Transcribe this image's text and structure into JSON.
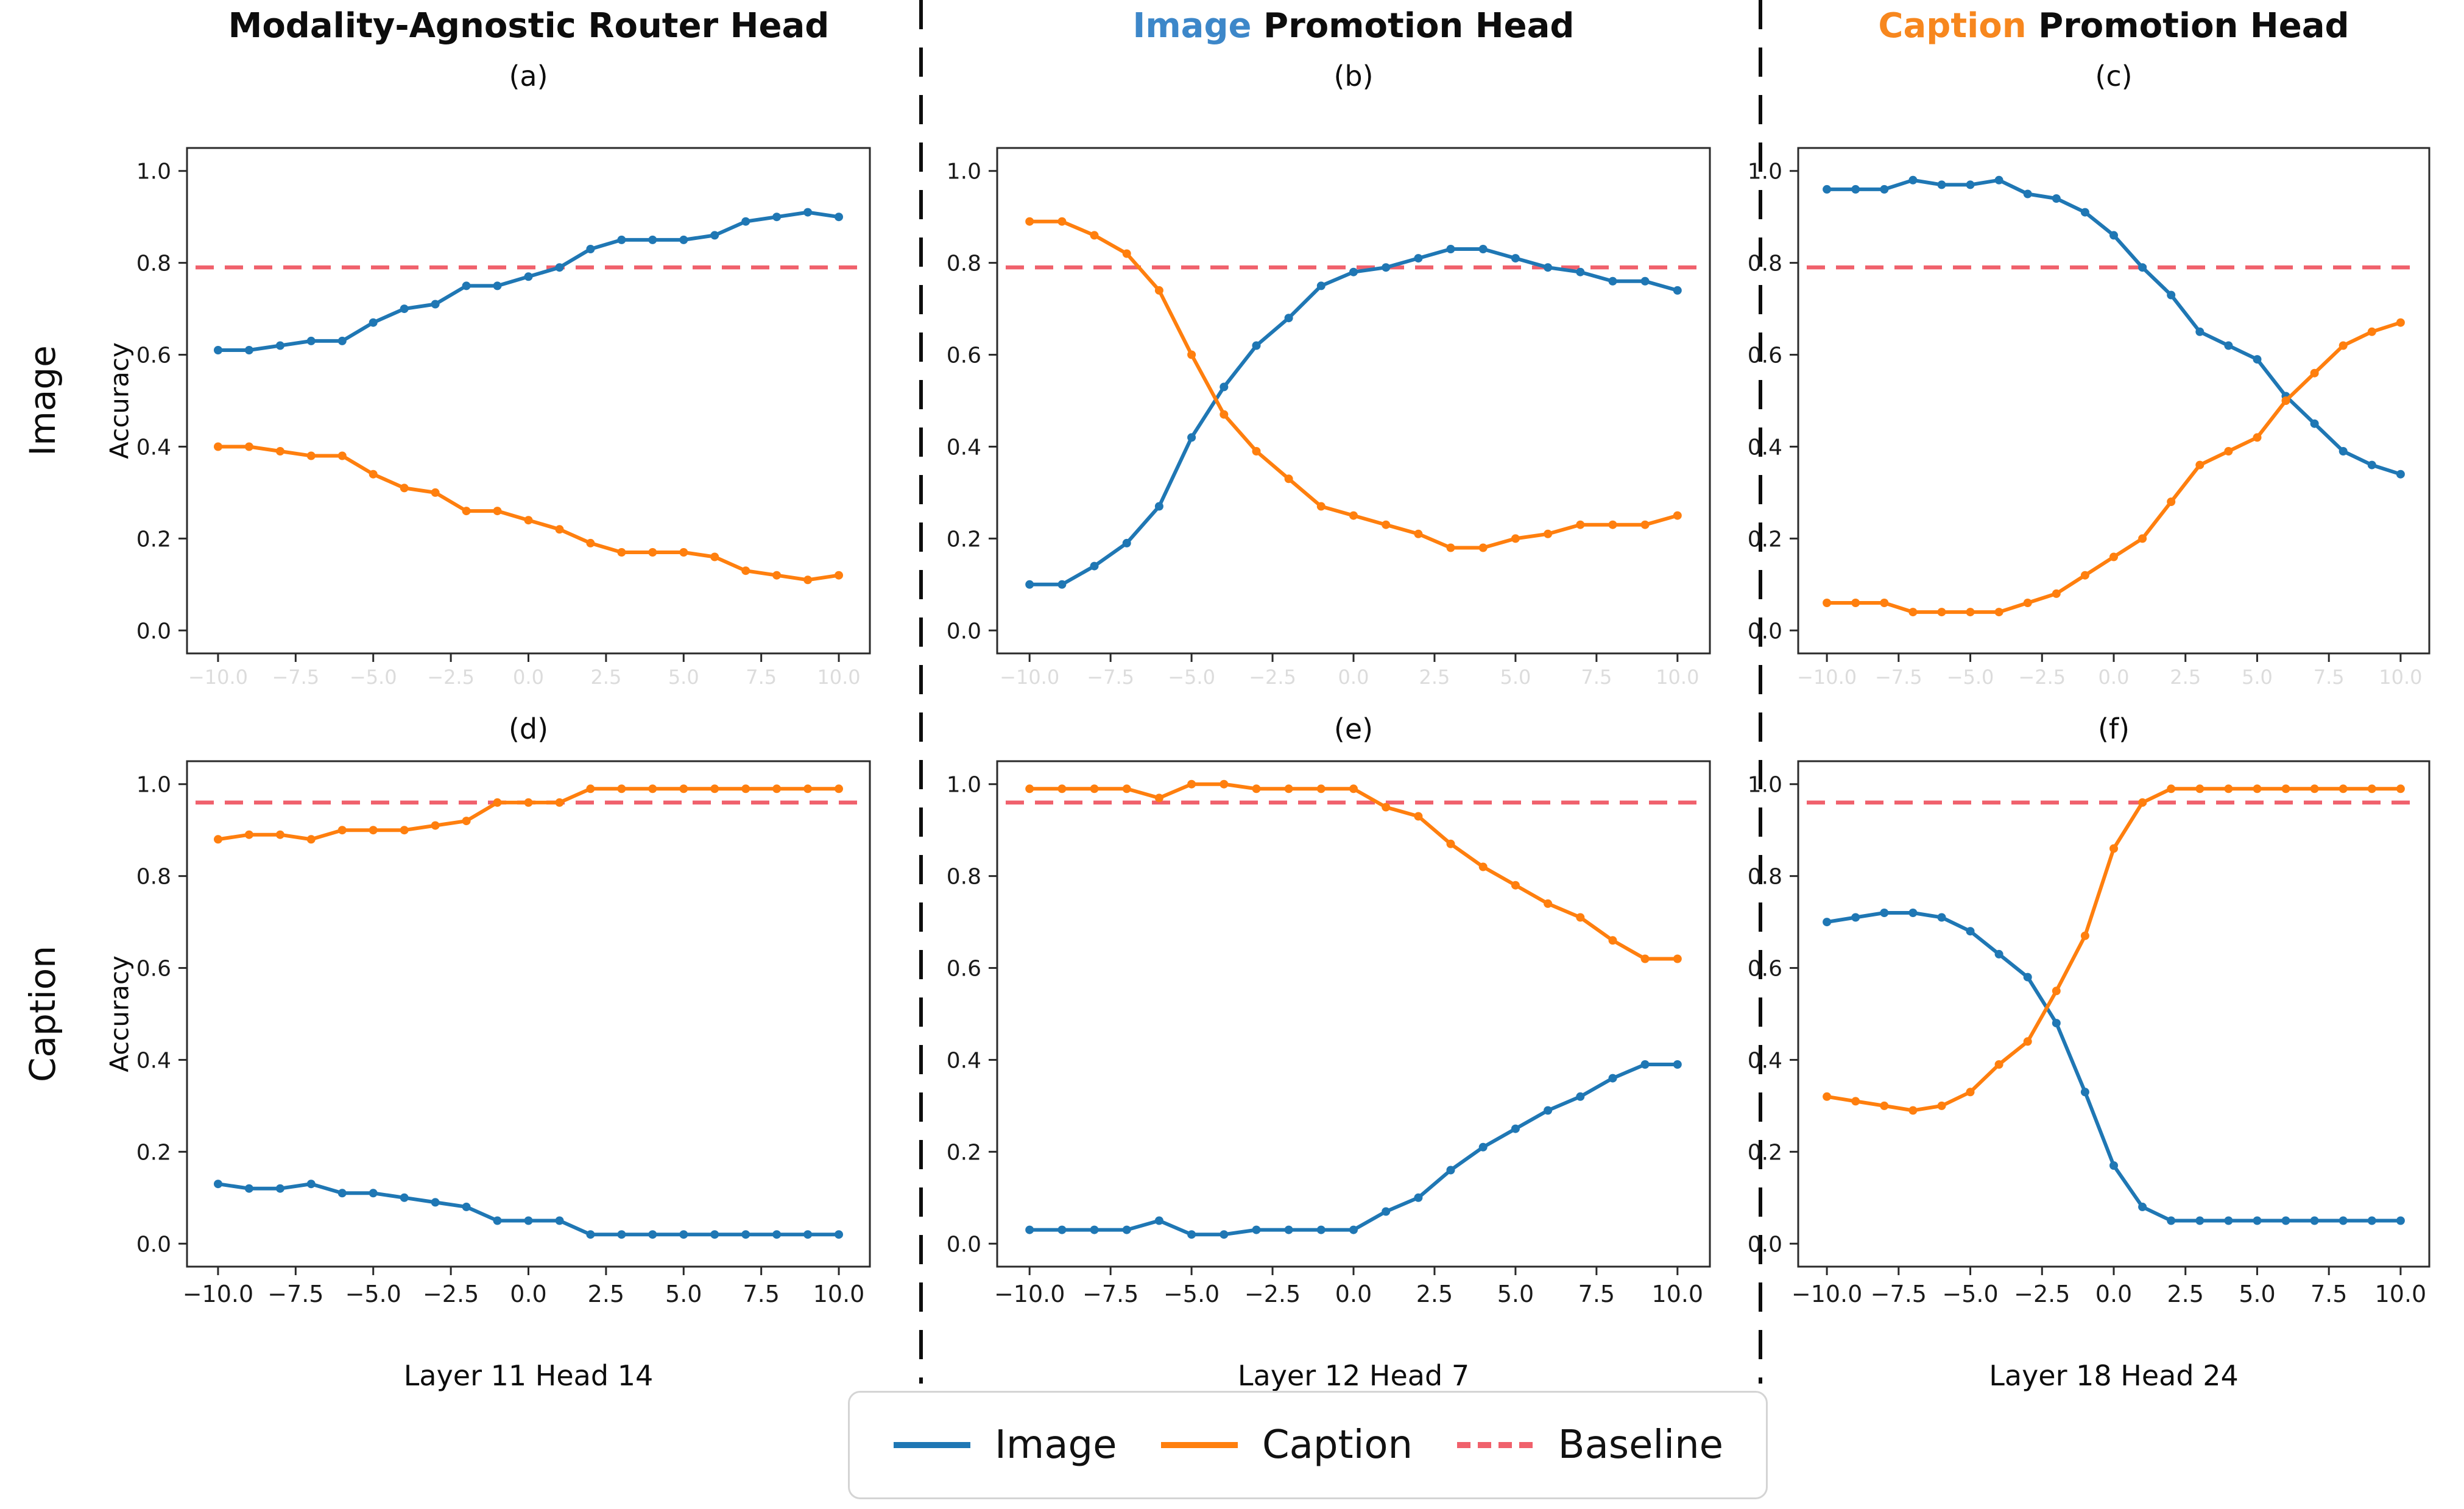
{
  "header": {
    "columns": [
      {
        "highlight": "",
        "rest": "Modality-Agnostic Router Head",
        "highlight_color": "#000000"
      },
      {
        "highlight": "Image",
        "rest": " Promotion Head",
        "highlight_color": "#3d87c9"
      },
      {
        "highlight": "Caption",
        "rest": " Promotion Head",
        "highlight_color": "#f7871e"
      }
    ]
  },
  "row_labels": [
    "Image",
    "Caption"
  ],
  "ylabel": "Accuracy",
  "legend": {
    "items": [
      {
        "label": "Image",
        "color": "#1f77b4",
        "dash": false
      },
      {
        "label": "Caption",
        "color": "#ff7f0e",
        "dash": false
      },
      {
        "label": "Baseline",
        "color": "#f0616c",
        "dash": true
      }
    ]
  },
  "axes": {
    "x": [
      -10,
      -9,
      -8,
      -7,
      -6,
      -5,
      -4,
      -3,
      -2,
      -1,
      0,
      1,
      2,
      3,
      4,
      5,
      6,
      7,
      8,
      9,
      10
    ],
    "xlim": [
      -11,
      11
    ],
    "ylim": [
      -0.05,
      1.05
    ],
    "xticks": [
      -10,
      -7.5,
      -5,
      -2.5,
      0,
      2.5,
      5,
      7.5,
      10
    ],
    "xtick_labels": [
      "−10.0",
      "−7.5",
      "−5.0",
      "−2.5",
      "0.0",
      "2.5",
      "5.0",
      "7.5",
      "10.0"
    ],
    "yticks": [
      0,
      0.2,
      0.4,
      0.6,
      0.8,
      1.0
    ],
    "ytick_labels": [
      "0.0",
      "0.2",
      "0.4",
      "0.6",
      "0.8",
      "1.0"
    ],
    "grid": false,
    "spine_color": "#2a2a2a"
  },
  "chart_data": [
    {
      "id": "(a)",
      "type": "line",
      "row": "Image",
      "column": "Modality-Agnostic Router Head",
      "xlabel": "",
      "ylabel": "Accuracy",
      "baseline": 0.79,
      "series": [
        {
          "name": "Image",
          "color": "#1f77b4",
          "values": [
            0.61,
            0.61,
            0.62,
            0.63,
            0.63,
            0.67,
            0.7,
            0.71,
            0.75,
            0.75,
            0.77,
            0.79,
            0.83,
            0.85,
            0.85,
            0.85,
            0.86,
            0.89,
            0.9,
            0.91,
            0.9
          ]
        },
        {
          "name": "Caption",
          "color": "#ff7f0e",
          "values": [
            0.4,
            0.4,
            0.39,
            0.38,
            0.38,
            0.34,
            0.31,
            0.3,
            0.26,
            0.26,
            0.24,
            0.22,
            0.19,
            0.17,
            0.17,
            0.17,
            0.16,
            0.13,
            0.12,
            0.11,
            0.12
          ]
        }
      ]
    },
    {
      "id": "(b)",
      "type": "line",
      "row": "Image",
      "column": "Image Promotion Head",
      "xlabel": "",
      "ylabel": "Accuracy",
      "baseline": 0.79,
      "series": [
        {
          "name": "Image",
          "color": "#1f77b4",
          "values": [
            0.1,
            0.1,
            0.14,
            0.19,
            0.27,
            0.42,
            0.53,
            0.62,
            0.68,
            0.75,
            0.78,
            0.79,
            0.81,
            0.83,
            0.83,
            0.81,
            0.79,
            0.78,
            0.76,
            0.76,
            0.74
          ]
        },
        {
          "name": "Caption",
          "color": "#ff7f0e",
          "values": [
            0.89,
            0.89,
            0.86,
            0.82,
            0.74,
            0.6,
            0.47,
            0.39,
            0.33,
            0.27,
            0.25,
            0.23,
            0.21,
            0.18,
            0.18,
            0.2,
            0.21,
            0.23,
            0.23,
            0.23,
            0.25
          ]
        }
      ]
    },
    {
      "id": "(c)",
      "type": "line",
      "row": "Image",
      "column": "Caption Promotion Head",
      "xlabel": "",
      "ylabel": "Accuracy",
      "baseline": 0.79,
      "series": [
        {
          "name": "Image",
          "color": "#1f77b4",
          "values": [
            0.96,
            0.96,
            0.96,
            0.98,
            0.97,
            0.97,
            0.98,
            0.95,
            0.94,
            0.91,
            0.86,
            0.79,
            0.73,
            0.65,
            0.62,
            0.59,
            0.51,
            0.45,
            0.39,
            0.36,
            0.34
          ]
        },
        {
          "name": "Caption",
          "color": "#ff7f0e",
          "values": [
            0.06,
            0.06,
            0.06,
            0.04,
            0.04,
            0.04,
            0.04,
            0.06,
            0.08,
            0.12,
            0.16,
            0.2,
            0.28,
            0.36,
            0.39,
            0.42,
            0.5,
            0.56,
            0.62,
            0.65,
            0.67
          ]
        }
      ]
    },
    {
      "id": "(d)",
      "type": "line",
      "row": "Caption",
      "column": "Modality-Agnostic Router Head",
      "xlabel": "Layer 11 Head 14",
      "ylabel": "Accuracy",
      "baseline": 0.96,
      "series": [
        {
          "name": "Image",
          "color": "#1f77b4",
          "values": [
            0.13,
            0.12,
            0.12,
            0.13,
            0.11,
            0.11,
            0.1,
            0.09,
            0.08,
            0.05,
            0.05,
            0.05,
            0.02,
            0.02,
            0.02,
            0.02,
            0.02,
            0.02,
            0.02,
            0.02,
            0.02
          ]
        },
        {
          "name": "Caption",
          "color": "#ff7f0e",
          "values": [
            0.88,
            0.89,
            0.89,
            0.88,
            0.9,
            0.9,
            0.9,
            0.91,
            0.92,
            0.96,
            0.96,
            0.96,
            0.99,
            0.99,
            0.99,
            0.99,
            0.99,
            0.99,
            0.99,
            0.99,
            0.99
          ]
        }
      ]
    },
    {
      "id": "(e)",
      "type": "line",
      "row": "Caption",
      "column": "Image Promotion Head",
      "xlabel": "Layer 12 Head 7",
      "ylabel": "Accuracy",
      "baseline": 0.96,
      "series": [
        {
          "name": "Image",
          "color": "#1f77b4",
          "values": [
            0.03,
            0.03,
            0.03,
            0.03,
            0.05,
            0.02,
            0.02,
            0.03,
            0.03,
            0.03,
            0.03,
            0.07,
            0.1,
            0.16,
            0.21,
            0.25,
            0.29,
            0.32,
            0.36,
            0.39,
            0.39
          ]
        },
        {
          "name": "Caption",
          "color": "#ff7f0e",
          "values": [
            0.99,
            0.99,
            0.99,
            0.99,
            0.97,
            1.0,
            1.0,
            0.99,
            0.99,
            0.99,
            0.99,
            0.95,
            0.93,
            0.87,
            0.82,
            0.78,
            0.74,
            0.71,
            0.66,
            0.62,
            0.62
          ]
        }
      ]
    },
    {
      "id": "(f)",
      "type": "line",
      "row": "Caption",
      "column": "Caption Promotion Head",
      "xlabel": "Layer 18 Head 24",
      "ylabel": "Accuracy",
      "baseline": 0.96,
      "series": [
        {
          "name": "Image",
          "color": "#1f77b4",
          "values": [
            0.7,
            0.71,
            0.72,
            0.72,
            0.71,
            0.68,
            0.63,
            0.58,
            0.48,
            0.33,
            0.17,
            0.08,
            0.05,
            0.05,
            0.05,
            0.05,
            0.05,
            0.05,
            0.05,
            0.05,
            0.05
          ]
        },
        {
          "name": "Caption",
          "color": "#ff7f0e",
          "values": [
            0.32,
            0.31,
            0.3,
            0.29,
            0.3,
            0.33,
            0.39,
            0.44,
            0.55,
            0.67,
            0.86,
            0.96,
            0.99,
            0.99,
            0.99,
            0.99,
            0.99,
            0.99,
            0.99,
            0.99,
            0.99
          ]
        }
      ]
    }
  ]
}
